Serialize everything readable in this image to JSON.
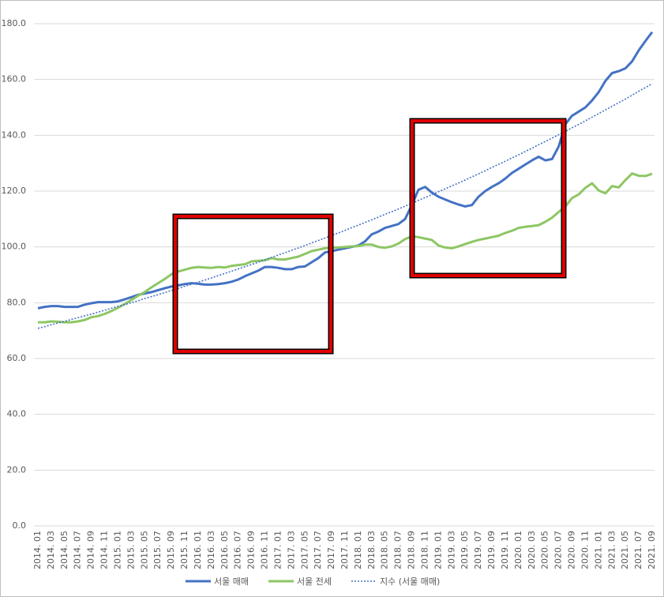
{
  "chart_data": {
    "type": "line",
    "categories": [
      "2014. 01",
      null,
      "2014. 03",
      null,
      "2014. 05",
      null,
      "2014. 07",
      null,
      "2014. 09",
      null,
      "2014. 11",
      null,
      "2015. 01",
      null,
      "2015. 03",
      null,
      "2015. 05",
      null,
      "2015. 07",
      null,
      "2015. 09",
      null,
      "2015. 11",
      null,
      "2016. 01",
      null,
      "2016. 03",
      null,
      "2016. 05",
      null,
      "2016. 07",
      null,
      "2016. 09",
      null,
      "2016. 11",
      null,
      "2017. 01",
      null,
      "2017. 03",
      null,
      "2017. 05",
      null,
      "2017. 07",
      null,
      "2017. 09",
      null,
      "2017. 11",
      null,
      "2018. 01",
      null,
      "2018. 03",
      null,
      "2018. 05",
      null,
      "2018. 07",
      null,
      "2018. 09",
      null,
      "2018. 11",
      null,
      "2019. 01",
      null,
      "2019. 03",
      null,
      "2019. 05",
      null,
      "2019. 07",
      null,
      "2019. 09",
      null,
      "2019. 11",
      null,
      "2020. 01",
      null,
      "2020. 03",
      null,
      "2020. 05",
      null,
      "2020. 07",
      null,
      "2020. 09",
      null,
      "2020. 11",
      null,
      "2021. 01",
      null,
      "2021. 03",
      null,
      "2021. 05",
      null,
      "2021. 07",
      null,
      "2021. 09"
    ],
    "series": [
      {
        "name": "서울 매매",
        "color": "#4472c4",
        "style": "solid",
        "values": [
          78.0,
          78.5,
          78.8,
          78.8,
          78.5,
          78.5,
          78.5,
          79.3,
          79.8,
          80.2,
          80.2,
          80.2,
          80.5,
          81.2,
          82.0,
          82.8,
          83.3,
          83.8,
          84.5,
          85.2,
          85.8,
          86.2,
          86.7,
          87.0,
          86.8,
          86.5,
          86.5,
          86.7,
          87.0,
          87.5,
          88.3,
          89.5,
          90.5,
          91.5,
          92.8,
          92.8,
          92.5,
          92.0,
          92.0,
          92.8,
          93.0,
          94.5,
          96.0,
          98.0,
          98.5,
          99.0,
          99.5,
          100.0,
          100.5,
          102.0,
          104.5,
          105.5,
          106.8,
          107.5,
          108.2,
          110.0,
          115.0,
          120.5,
          121.5,
          119.5,
          118.0,
          117.0,
          116.0,
          115.2,
          114.5,
          115.0,
          118.0,
          120.0,
          121.5,
          122.8,
          124.5,
          126.5,
          128.0,
          129.5,
          131.0,
          132.3,
          131.0,
          131.5,
          136.0,
          144.0,
          147.0,
          148.5,
          150.0,
          152.5,
          155.5,
          159.5,
          162.3,
          163.0,
          164.0,
          166.5,
          170.5,
          173.8,
          177.0
        ]
      },
      {
        "name": "서울 전세",
        "color": "#8dc663",
        "style": "solid",
        "values": [
          73.0,
          73.0,
          73.3,
          73.2,
          73.0,
          73.0,
          73.3,
          73.8,
          74.8,
          75.2,
          76.0,
          77.0,
          78.2,
          79.5,
          81.0,
          82.5,
          83.8,
          85.5,
          87.0,
          88.5,
          90.2,
          91.2,
          91.8,
          92.5,
          92.8,
          92.6,
          92.5,
          92.8,
          92.6,
          93.2,
          93.5,
          93.8,
          94.8,
          95.0,
          95.2,
          96.0,
          95.5,
          95.5,
          96.0,
          96.5,
          97.5,
          98.5,
          99.0,
          99.5,
          99.8,
          99.8,
          100.0,
          100.2,
          100.3,
          100.8,
          100.8,
          100.0,
          99.7,
          100.2,
          101.2,
          102.8,
          103.8,
          103.5,
          103.0,
          102.5,
          100.5,
          99.8,
          99.5,
          100.2,
          101.0,
          101.8,
          102.5,
          103.0,
          103.5,
          104.0,
          105.0,
          105.8,
          106.8,
          107.2,
          107.5,
          107.8,
          109.0,
          110.5,
          112.5,
          114.5,
          117.5,
          118.8,
          121.2,
          122.8,
          120.2,
          119.2,
          121.8,
          121.3,
          124.0,
          126.3,
          125.5,
          125.4,
          126.2
        ]
      },
      {
        "name": "지수 (서울 매매)",
        "color": "#4472c4",
        "style": "dotted",
        "values": [
          70.8,
          71.4,
          72.1,
          72.7,
          73.3,
          74.0,
          74.6,
          75.3,
          75.9,
          76.6,
          77.3,
          78.0,
          78.7,
          79.3,
          80.0,
          80.7,
          81.5,
          82.2,
          82.9,
          83.6,
          84.4,
          85.1,
          85.9,
          86.6,
          87.4,
          88.1,
          88.9,
          89.7,
          90.5,
          91.3,
          92.1,
          92.9,
          93.7,
          94.5,
          95.4,
          96.2,
          97.1,
          97.9,
          98.8,
          99.6,
          100.5,
          101.4,
          102.3,
          103.2,
          104.1,
          105.0,
          105.9,
          106.9,
          107.8,
          108.8,
          109.7,
          110.7,
          111.7,
          112.6,
          113.6,
          114.6,
          115.6,
          116.7,
          117.7,
          118.7,
          119.8,
          120.8,
          121.9,
          122.9,
          124.0,
          125.1,
          126.2,
          127.3,
          128.5,
          129.6,
          130.7,
          131.9,
          133.0,
          134.2,
          135.4,
          136.6,
          137.8,
          139.0,
          140.2,
          141.4,
          142.7,
          143.9,
          145.2,
          146.5,
          147.8,
          149.1,
          150.4,
          151.7,
          153.0,
          154.4,
          155.8,
          157.1,
          158.5
        ]
      }
    ],
    "ylim": [
      0,
      180
    ],
    "yticks": [
      {
        "value": 0,
        "label": "0.0"
      },
      {
        "value": 20,
        "label": "20.0"
      },
      {
        "value": 40,
        "label": "40.0"
      },
      {
        "value": 60,
        "label": "60.0"
      },
      {
        "value": 80,
        "label": "80.0"
      },
      {
        "value": 100,
        "label": "100.0"
      },
      {
        "value": 120,
        "label": "120.0"
      },
      {
        "value": 140,
        "label": "140.0"
      },
      {
        "value": 160,
        "label": "160.0"
      },
      {
        "value": 180,
        "label": "180.0"
      }
    ],
    "grid": true,
    "legend": "bottom"
  }
}
